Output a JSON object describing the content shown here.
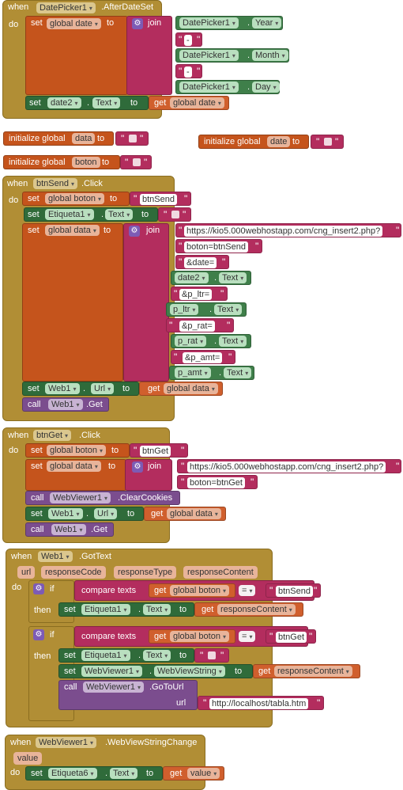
{
  "b1": {
    "when": "when",
    "component": "DatePicker1",
    "event": ".AfterDateSet",
    "do": "do",
    "set": "set",
    "var": "global date",
    "to": "to",
    "join": "join",
    "dp1": "DatePicker1",
    "prop_year": "Year",
    "dash": "-",
    "prop_month": "Month",
    "prop_day": "Day",
    "set2_comp": "date2",
    "set2_prop": "Text",
    "get": "get",
    "get_var": "global date"
  },
  "init": {
    "label": "initialize global",
    "to": "to",
    "data_name": "data",
    "date_name": "date",
    "boton_name": "boton"
  },
  "b2": {
    "when": "when",
    "component": "btnSend",
    "event": ".Click",
    "do": "do",
    "set": "set",
    "to": "to",
    "boton_var": "global boton",
    "boton_val": "btnSend",
    "etiq": "Etiqueta1",
    "text": "Text",
    "data_var": "global data",
    "join": "join",
    "s1": "https://kio5.000webhostapp.com/cng_insert2.php?",
    "s2": "boton=btnSend",
    "s3": "&date=",
    "c1": "date2",
    "s4": "&p_ltr=",
    "c2": "p_ltr",
    "s5": "&p_rat=",
    "c3": "p_rat",
    "s6": "&p_amt=",
    "c4": "p_amt",
    "web": "Web1",
    "url": "Url",
    "get": "get",
    "call": "call",
    "getm": ".Get"
  },
  "b3": {
    "when": "when",
    "component": "btnGet",
    "event": ".Click",
    "do": "do",
    "set": "set",
    "to": "to",
    "boton_var": "global boton",
    "boton_val": "btnGet",
    "data_var": "global data",
    "join": "join",
    "s1": "https://kio5.000webhostapp.com/cng_insert2.php?",
    "s2": "boton=btnGet",
    "call": "call",
    "wv": "WebViewer1",
    "clear": ".ClearCookies",
    "web": "Web1",
    "url": "Url",
    "get": "get",
    "getm": ".Get"
  },
  "b4": {
    "when": "when",
    "component": "Web1",
    "event": ".GotText",
    "params": [
      "url",
      "responseCode",
      "responseType",
      "responseContent"
    ],
    "do": "do",
    "if": "if",
    "then": "then",
    "compare": "compare texts",
    "get": "get",
    "boton_var": "global boton",
    "eq": "=",
    "v1": "btnSend",
    "v2": "btnGet",
    "set": "set",
    "etiq": "Etiqueta1",
    "text": "Text",
    "to": "to",
    "rc": "responseContent",
    "wv": "WebViewer1",
    "wvs": "WebViewString",
    "call": "call",
    "goto": ".GoToUrl",
    "url": "url",
    "local": "http://localhost/tabla.htm"
  },
  "b5": {
    "when": "when",
    "component": "WebViewer1",
    "event": ".WebViewStringChange",
    "param": "value",
    "do": "do",
    "set": "set",
    "etiq": "Etiqueta6",
    "text": "Text",
    "to": "to",
    "get": "get",
    "val": "value"
  }
}
